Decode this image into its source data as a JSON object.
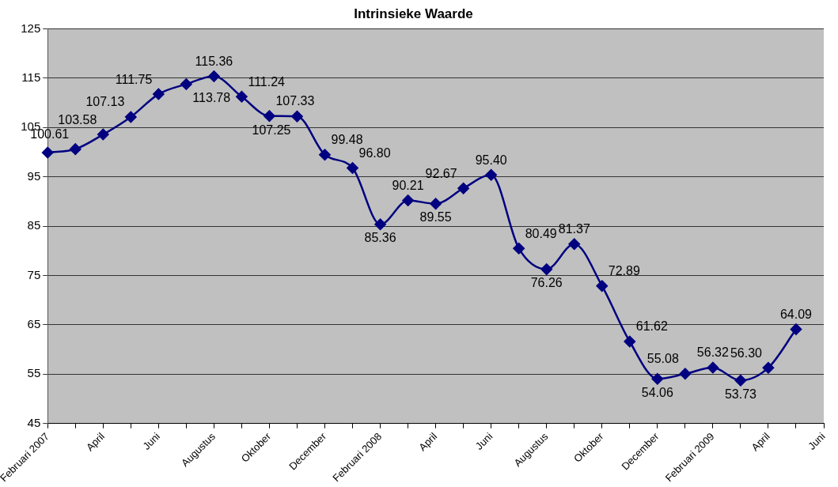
{
  "chart_data": {
    "type": "line",
    "title": "Intrinsieke Waarde",
    "categories": [
      "Februari 2007",
      null,
      "April",
      null,
      "Juni",
      null,
      "Augustus",
      null,
      "Oktober",
      null,
      "December",
      null,
      "Februari 2008",
      null,
      "April",
      null,
      "Juni",
      null,
      "Augustus",
      null,
      "Oktober",
      null,
      "December",
      null,
      "Februari 2009",
      null,
      "April",
      null,
      "Juni"
    ],
    "series": [
      {
        "color": "#000080",
        "values": [
          99.9,
          100.61,
          103.58,
          107.13,
          111.75,
          113.78,
          115.36,
          111.24,
          107.33,
          107.25,
          99.48,
          96.8,
          85.36,
          90.21,
          89.55,
          92.67,
          95.4,
          80.49,
          76.26,
          81.37,
          72.89,
          61.62,
          54.06,
          55.08,
          56.32,
          53.73,
          56.3,
          64.09,
          null
        ],
        "value_labels": [
          null,
          "100.61",
          "103.58",
          "107.13",
          "111.75",
          "113.78",
          "115.36",
          "111.24",
          "107.33",
          "107.25",
          "99.48",
          "96.80",
          "85.36",
          "90.21",
          "89.55",
          "92.67",
          "95.40",
          "80.49",
          "76.26",
          "81.37",
          "72.89",
          "61.62",
          "54.06",
          "55.08",
          "56.32",
          "53.73",
          "56.30",
          "64.09",
          null
        ]
      }
    ],
    "ylim": [
      45,
      125
    ],
    "yticks": [
      45,
      55,
      65,
      75,
      85,
      95,
      105,
      115,
      125
    ],
    "grid": "y",
    "legend": false,
    "marker": "diamond",
    "line_style": "solid"
  }
}
